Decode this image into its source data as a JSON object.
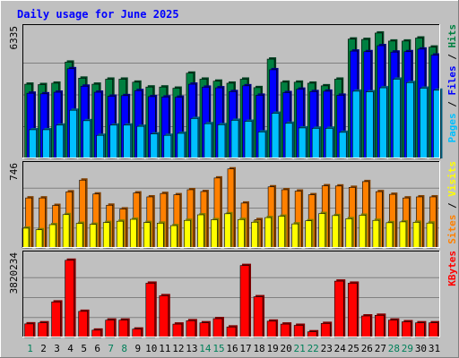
{
  "chart_data": {
    "type": "bar",
    "title": "Daily usage for June 2025",
    "days": [
      "1",
      "2",
      "3",
      "4",
      "5",
      "6",
      "7",
      "8",
      "9",
      "10",
      "11",
      "12",
      "13",
      "14",
      "15",
      "16",
      "17",
      "18",
      "19",
      "20",
      "21",
      "22",
      "23",
      "24",
      "25",
      "26",
      "27",
      "28",
      "29",
      "30",
      "31"
    ],
    "weekend_days": [
      "1",
      "7",
      "8",
      "14",
      "15",
      "21",
      "22",
      "28",
      "29"
    ],
    "panels": [
      {
        "id": "hits-files-pages",
        "axis_max_label": "6335",
        "ymax": 6335,
        "side_labels": [
          {
            "text": "Pages",
            "color": "#00c0ff"
          },
          {
            "text": " / ",
            "color": "#000000"
          },
          {
            "text": "Files",
            "color": "#0000ff"
          },
          {
            "text": " / ",
            "color": "#000000"
          },
          {
            "text": "Hits",
            "color": "#008040"
          }
        ],
        "series": [
          {
            "name": "Hits",
            "color": "#008040",
            "values": [
              3700,
              3680,
              3750,
              4800,
              4000,
              3700,
              3950,
              3950,
              3800,
              3560,
              3560,
              3500,
              4250,
              3950,
              3850,
              3750,
              3950,
              3530,
              4950,
              3800,
              3800,
              3750,
              3620,
              3950,
              5950,
              5930,
              6250,
              5850,
              5850,
              6000,
              5550
            ]
          },
          {
            "name": "Files",
            "color": "#0000ff",
            "values": [
              3250,
              3220,
              3300,
              4470,
              3600,
              3300,
              3100,
              3130,
              3380,
              3080,
              3060,
              3050,
              3700,
              3550,
              3520,
              3330,
              3620,
              3150,
              4420,
              3280,
              3450,
              3330,
              3350,
              3150,
              5350,
              5320,
              5620,
              5300,
              5320,
              5450,
              5150
            ]
          },
          {
            "name": "Pages",
            "color": "#00c0ff",
            "values": [
              1430,
              1430,
              1660,
              2400,
              1880,
              1150,
              1660,
              1660,
              1600,
              1220,
              1150,
              1250,
              1990,
              1730,
              1680,
              1900,
              1850,
              1320,
              2250,
              1750,
              1520,
              1500,
              1500,
              1300,
              3350,
              3320,
              3520,
              3950,
              3780,
              3500,
              3400
            ]
          }
        ]
      },
      {
        "id": "visits-sites",
        "axis_max_label": "746",
        "ymax": 746,
        "side_labels": [
          {
            "text": "Sites",
            "color": "#ff8000"
          },
          {
            "text": " / ",
            "color": "#000000"
          },
          {
            "text": "Visits",
            "color": "#ffff00"
          }
        ],
        "series": [
          {
            "name": "Visits",
            "color": "#ff8000",
            "values": [
              468,
              468,
              398,
              525,
              635,
              505,
              400,
              365,
              515,
              478,
              510,
              498,
              545,
              528,
              655,
              740,
              420,
              265,
              572,
              545,
              532,
              498,
              582,
              580,
              567,
              621,
              527,
              502,
              468,
              478,
              478
            ]
          },
          {
            "name": "Sites",
            "color": "#ffff00",
            "values": [
              185,
              170,
              218,
              312,
              230,
              221,
              238,
              250,
              268,
              238,
              232,
              209,
              258,
              310,
              264,
              320,
              266,
              241,
              284,
              297,
              225,
              254,
              322,
              303,
              274,
              306,
              258,
              236,
              244,
              240,
              233
            ]
          }
        ]
      },
      {
        "id": "kbytes",
        "axis_max_label": "3820234",
        "ymax": 3820234,
        "side_labels": [
          {
            "text": "KBytes",
            "color": "#ff0000"
          }
        ],
        "series": [
          {
            "name": "KBytes",
            "color": "#ff0000",
            "values": [
              650000,
              700000,
              1700000,
              3700000,
              1250000,
              350000,
              830000,
              830000,
              400000,
              2600000,
              2000000,
              640000,
              800000,
              700000,
              900000,
              500000,
              3450000,
              1950000,
              780000,
              640000,
              580000,
              270000,
              670000,
              2700000,
              2600000,
              1030000,
              1060000,
              830000,
              750000,
              700000,
              700000
            ]
          }
        ]
      }
    ]
  }
}
